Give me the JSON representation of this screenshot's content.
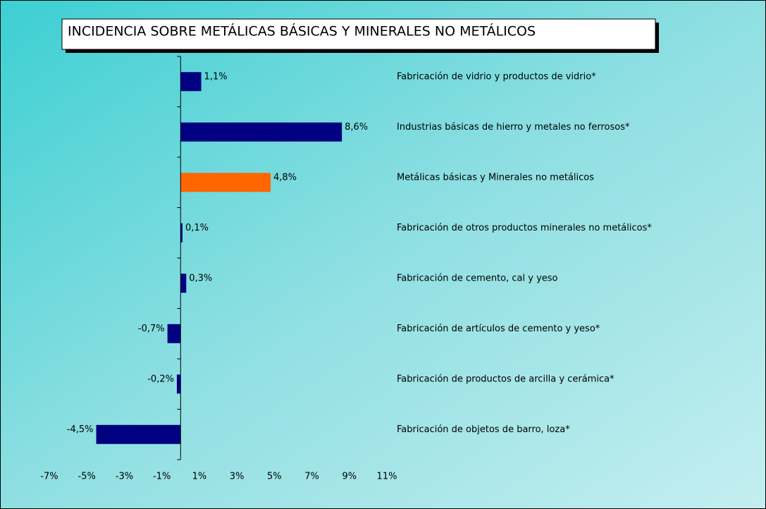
{
  "chart_data": {
    "type": "barh",
    "title": "INCIDENCIA SOBRE METÁLICAS BÁSICAS Y MINERALES NO METÁLICOS",
    "categories": [
      "Fabricación de vidrio y productos de vidrio*",
      "Industrias básicas de hierro y metales no ferrosos*",
      "Metálicas básicas y Minerales no metálicos",
      "Fabricación de otros productos minerales no metálicos*",
      "Fabricación de cemento, cal y yeso",
      "Fabricación de artículos de cemento y yeso*",
      "Fabricación de productos de arcilla y cerámica*",
      "Fabricación de objetos de barro, loza*"
    ],
    "values": [
      1.1,
      8.6,
      4.8,
      0.1,
      0.3,
      -0.7,
      -0.2,
      -4.5
    ],
    "value_labels": [
      "1,1%",
      "8,6%",
      "4,8%",
      "0,1%",
      "0,3%",
      "-0,7%",
      "-0,2%",
      "-4,5%"
    ],
    "colors": [
      "#000080",
      "#000080",
      "#ff6600",
      "#000080",
      "#000080",
      "#000080",
      "#000080",
      "#000080"
    ],
    "xlim": [
      -7,
      11
    ],
    "xticks": [
      {
        "value": -7,
        "label": "-7%"
      },
      {
        "value": -5,
        "label": "-5%"
      },
      {
        "value": -3,
        "label": "-3%"
      },
      {
        "value": -1,
        "label": "-1%"
      },
      {
        "value": 1,
        "label": "1%"
      },
      {
        "value": 3,
        "label": "3%"
      },
      {
        "value": 5,
        "label": "5%"
      },
      {
        "value": 7,
        "label": "7%"
      },
      {
        "value": 9,
        "label": "9%"
      },
      {
        "value": 11,
        "label": "11%"
      }
    ]
  }
}
